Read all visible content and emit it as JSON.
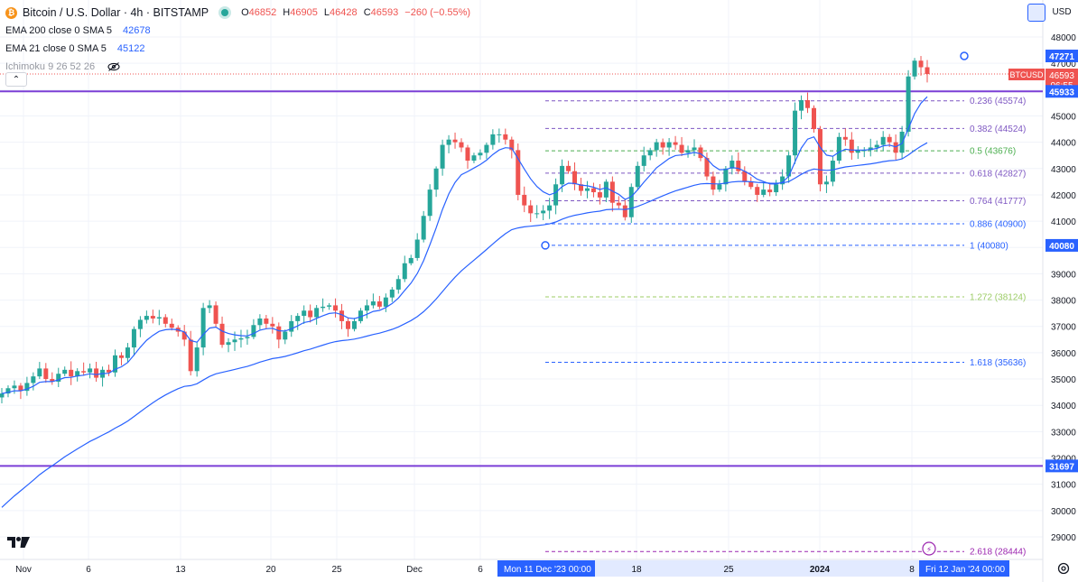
{
  "header": {
    "title": "Bitcoin / U.S. Dollar · 4h · BITSTAMP",
    "coin_icon": "bitcoin-icon",
    "ohlc": {
      "open_label": "O",
      "open": "46852",
      "high_label": "H",
      "high": "46905",
      "low_label": "L",
      "low": "46428",
      "close_label": "C",
      "close": "46593",
      "change": "−260 (−0.55%)"
    },
    "indicators": [
      {
        "name": "EMA 200 close 0 SMA 5",
        "value": "42678",
        "color": "#2962ff"
      },
      {
        "name": "EMA 21 close 0 SMA 5",
        "value": "45122",
        "color": "#2962ff"
      },
      {
        "name": "Ichimoku 9 26 52 26",
        "value": "",
        "color": "#9598a1",
        "hidden_icon": "eye-off-icon"
      }
    ],
    "currency": "USD"
  },
  "chart_data": {
    "type": "line",
    "subtype": "candlestick",
    "symbol": "BTCUSD",
    "ylim": [
      28400,
      48500
    ],
    "y_ticks": [
      29000,
      30000,
      31000,
      32000,
      33000,
      34000,
      35000,
      36000,
      37000,
      38000,
      39000,
      40000,
      41000,
      42000,
      43000,
      44000,
      45000,
      46000,
      47000,
      48000
    ],
    "x_ticks": [
      "Nov",
      "6",
      "13",
      "20",
      "25",
      "Dec",
      "6",
      "18",
      "25",
      "2024",
      "8"
    ],
    "x_highlight_labels": [
      "Mon 11 Dec '23   00:00",
      "Fri 12 Jan '24   00:00"
    ],
    "price_labels": [
      {
        "text": "47271",
        "color": "#2962ff"
      },
      {
        "text": "BTCUSD",
        "color": "#ef5350"
      },
      {
        "text": "46593",
        "color": "#ef5350"
      },
      {
        "text": "06:55",
        "color": "#ef5350"
      },
      {
        "text": "45933",
        "color": "#2962ff"
      },
      {
        "text": "40080",
        "color": "#2962ff"
      },
      {
        "text": "31697",
        "color": "#2962ff"
      }
    ],
    "horizontal_lines": [
      {
        "value": 45933,
        "color": "#7b3fd6"
      },
      {
        "value": 31697,
        "color": "#7b3fd6"
      }
    ],
    "fibonacci": [
      {
        "ratio": "0.236",
        "price": 45574,
        "label": "0.236 (45574)",
        "color": "#7e57c2"
      },
      {
        "ratio": "0.382",
        "price": 44524,
        "label": "0.382 (44524)",
        "color": "#7e57c2"
      },
      {
        "ratio": "0.5",
        "price": 43676,
        "label": "0.5 (43676)",
        "color": "#4caf50"
      },
      {
        "ratio": "0.618",
        "price": 42827,
        "label": "0.618 (42827)",
        "color": "#7e57c2"
      },
      {
        "ratio": "0.764",
        "price": 41777,
        "label": "0.764 (41777)",
        "color": "#7e57c2"
      },
      {
        "ratio": "0.886",
        "price": 40900,
        "label": "0.886 (40900)",
        "color": "#2962ff"
      },
      {
        "ratio": "1",
        "price": 40080,
        "label": "1 (40080)",
        "color": "#2962ff"
      },
      {
        "ratio": "1.272",
        "price": 38124,
        "label": "1.272 (38124)",
        "color": "#9ccc65"
      },
      {
        "ratio": "1.618",
        "price": 35636,
        "label": "1.618 (35636)",
        "color": "#2962ff"
      },
      {
        "ratio": "2.618",
        "price": 28444,
        "label": "2.618 (28444)",
        "color": "#9c27b0"
      }
    ],
    "series": [
      {
        "name": "BTCUSD",
        "kind": "close",
        "color_up": "#26a69a",
        "color_down": "#ef5350",
        "values": [
          34450,
          34650,
          34750,
          34550,
          34850,
          35100,
          35400,
          35000,
          34900,
          35200,
          35350,
          35100,
          35300,
          35250,
          35400,
          35050,
          35350,
          35250,
          35900,
          35800,
          36200,
          36900,
          37250,
          37400,
          37300,
          37350,
          37100,
          36950,
          36800,
          36500,
          35300,
          36200,
          37700,
          37800,
          37100,
          36300,
          36400,
          36500,
          36550,
          36600,
          37050,
          37300,
          37100,
          37000,
          36500,
          36800,
          37200,
          37400,
          37600,
          37350,
          37700,
          37750,
          37800,
          37600,
          37200,
          36900,
          37200,
          37600,
          37800,
          37950,
          37750,
          38100,
          38400,
          38800,
          39400,
          39600,
          40300,
          41200,
          42200,
          43000,
          43900,
          44100,
          44000,
          43800,
          43300,
          43500,
          43600,
          43900,
          44300,
          44300,
          44100,
          43700,
          42000,
          41600,
          41300,
          41300,
          41400,
          41600,
          42400,
          43100,
          42900,
          42400,
          42150,
          42250,
          42100,
          41900,
          42500,
          41700,
          41600,
          41150,
          42300,
          43100,
          43500,
          43700,
          44000,
          43800,
          44000,
          43900,
          43600,
          43700,
          43800,
          43400,
          42700,
          42200,
          42400,
          43000,
          43300,
          42900,
          42500,
          42300,
          42000,
          42200,
          42100,
          42400,
          42700,
          43500,
          45200,
          45600,
          45300,
          44500,
          42400,
          42500,
          43300,
          44200,
          44100,
          43600,
          43700,
          43700,
          43800,
          43900,
          44200,
          44000,
          43600,
          44400,
          46500,
          47100,
          46850,
          46593
        ]
      },
      {
        "name": "EMA 200",
        "kind": "ema",
        "color": "#2962ff",
        "value_last": 42678
      },
      {
        "name": "EMA 21",
        "kind": "ema",
        "color": "#2962ff",
        "value_last": 45122
      }
    ],
    "grid": true,
    "legend": "top-left"
  }
}
